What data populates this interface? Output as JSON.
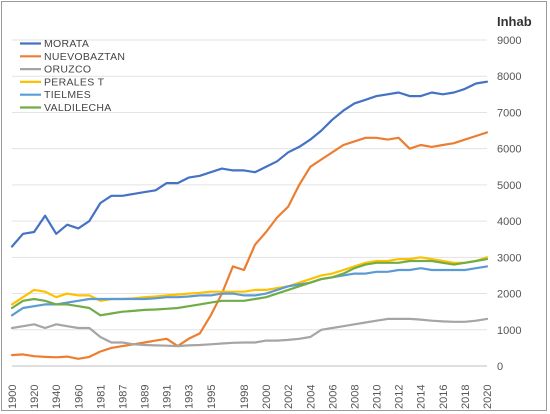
{
  "chart_data": {
    "type": "line",
    "unit_label": "Inhab",
    "ylim": [
      0,
      9000
    ],
    "y_ticks": [
      "0",
      "1000",
      "2000",
      "3000",
      "4000",
      "5000",
      "6000",
      "7000",
      "8000",
      "9000"
    ],
    "x": [
      "1900",
      "1910",
      "1920",
      "1930",
      "1940",
      "1950",
      "1960",
      "1970",
      "1981",
      "1986",
      "1987",
      "1988",
      "1989",
      "1990",
      "1991",
      "1992",
      "1993",
      "1994",
      "1995",
      "1996",
      "1997",
      "1998",
      "1999",
      "2000",
      "2001",
      "2002",
      "2003",
      "2004",
      "2005",
      "2006",
      "2007",
      "2008",
      "2009",
      "2010",
      "2011",
      "2012",
      "2013",
      "2014",
      "2015",
      "2016",
      "2017",
      "2018",
      "2019",
      "2020"
    ],
    "x_tick_labels": [
      "1900",
      "1920",
      "1940",
      "1960",
      "1981",
      "1987",
      "1989",
      "1991",
      "1993",
      "1995",
      "1998",
      "2000",
      "2002",
      "2004",
      "2006",
      "2008",
      "2010",
      "2012",
      "2014",
      "2016",
      "2018",
      "2020"
    ],
    "legend_position": "top-left",
    "grid": "horizontal",
    "series": [
      {
        "name": "MORATA",
        "color": "#4472c4",
        "values": [
          3300,
          3650,
          3700,
          4150,
          3650,
          3900,
          3800,
          4000,
          4500,
          4700,
          4700,
          4750,
          4800,
          4850,
          5050,
          5050,
          5200,
          5250,
          5350,
          5450,
          5400,
          5400,
          5350,
          5500,
          5650,
          5900,
          6050,
          6250,
          6500,
          6800,
          7050,
          7250,
          7350,
          7450,
          7500,
          7550,
          7450,
          7450,
          7550,
          7500,
          7550,
          7650,
          7800,
          7850
        ]
      },
      {
        "name": "NUEVOBAZTAN",
        "color": "#ed7d31",
        "values": [
          300,
          320,
          270,
          250,
          240,
          260,
          200,
          250,
          400,
          500,
          550,
          600,
          650,
          700,
          750,
          550,
          750,
          900,
          1400,
          2000,
          2750,
          2650,
          3350,
          3700,
          4100,
          4400,
          5000,
          5500,
          5700,
          5900,
          6100,
          6200,
          6300,
          6300,
          6250,
          6300,
          6000,
          6100,
          6050,
          6100,
          6150,
          6250,
          6350,
          6450
        ]
      },
      {
        "name": "ORUZCO",
        "color": "#a5a5a5",
        "values": [
          1050,
          1100,
          1150,
          1050,
          1150,
          1100,
          1050,
          1050,
          800,
          650,
          650,
          600,
          580,
          570,
          560,
          550,
          570,
          580,
          600,
          620,
          640,
          650,
          650,
          700,
          700,
          720,
          750,
          800,
          1000,
          1050,
          1100,
          1150,
          1200,
          1250,
          1300,
          1300,
          1300,
          1280,
          1250,
          1230,
          1220,
          1220,
          1250,
          1300
        ]
      },
      {
        "name": "PERALES T",
        "color": "#ffc000",
        "values": [
          1700,
          1900,
          2100,
          2050,
          1900,
          2000,
          1950,
          1950,
          1800,
          1850,
          1850,
          1870,
          1900,
          1920,
          1950,
          1970,
          2000,
          2020,
          2050,
          2050,
          2050,
          2050,
          2100,
          2100,
          2150,
          2200,
          2300,
          2400,
          2500,
          2550,
          2650,
          2750,
          2850,
          2900,
          2900,
          2950,
          2950,
          3000,
          2950,
          2900,
          2850,
          2850,
          2900,
          3000
        ]
      },
      {
        "name": "TIELMES",
        "color": "#5b9bd5",
        "values": [
          1400,
          1600,
          1650,
          1700,
          1700,
          1750,
          1800,
          1850,
          1850,
          1850,
          1850,
          1850,
          1850,
          1870,
          1900,
          1900,
          1920,
          1950,
          1950,
          2000,
          2000,
          1950,
          1950,
          2000,
          2100,
          2200,
          2250,
          2300,
          2400,
          2450,
          2500,
          2550,
          2550,
          2600,
          2600,
          2650,
          2650,
          2700,
          2650,
          2650,
          2650,
          2650,
          2700,
          2750
        ]
      },
      {
        "name": "VALDILECHA",
        "color": "#70ad47",
        "values": [
          1600,
          1800,
          1850,
          1800,
          1700,
          1700,
          1650,
          1600,
          1400,
          1450,
          1500,
          1520,
          1550,
          1560,
          1580,
          1600,
          1650,
          1700,
          1750,
          1800,
          1800,
          1800,
          1850,
          1900,
          2000,
          2100,
          2200,
          2300,
          2400,
          2450,
          2550,
          2700,
          2800,
          2850,
          2850,
          2850,
          2900,
          2900,
          2900,
          2850,
          2800,
          2850,
          2900,
          2950
        ]
      }
    ]
  }
}
